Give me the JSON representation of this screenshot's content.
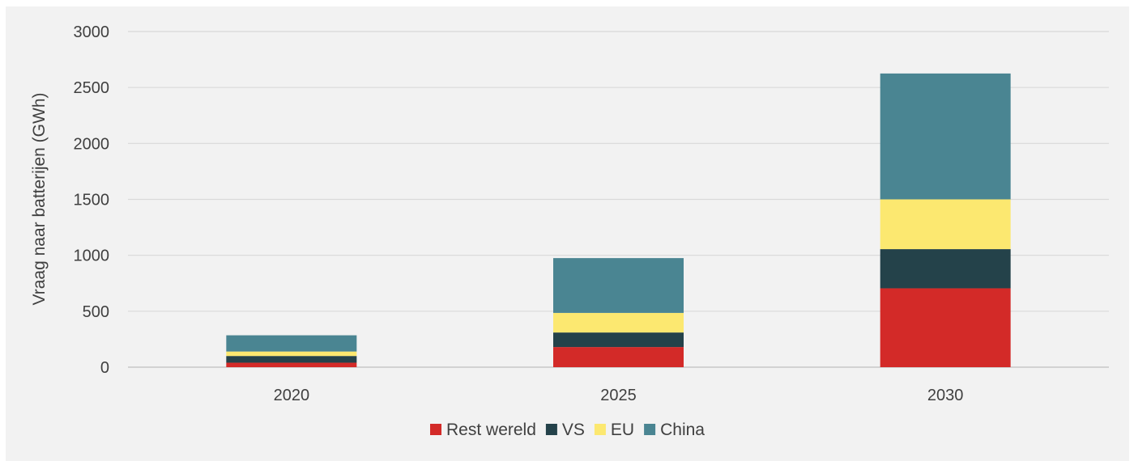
{
  "chart_data": {
    "type": "bar",
    "stacked": true,
    "categories": [
      "2020",
      "2025",
      "2030"
    ],
    "series": [
      {
        "name": "Rest wereld",
        "color": "#d32a28",
        "values": [
          40,
          180,
          705
        ]
      },
      {
        "name": "VS",
        "color": "#24424a",
        "values": [
          60,
          130,
          350
        ]
      },
      {
        "name": "EU",
        "color": "#fce870",
        "values": [
          40,
          175,
          445
        ]
      },
      {
        "name": "China",
        "color": "#4a8592",
        "values": [
          145,
          490,
          1125
        ]
      }
    ],
    "title": "",
    "xlabel": "",
    "ylabel": "Vraag naar batterijen (GWh)",
    "ylim": [
      0,
      3000
    ],
    "yticks": [
      0,
      500,
      1000,
      1500,
      2000,
      2500,
      3000
    ],
    "grid": true,
    "legend_position": "bottom"
  }
}
